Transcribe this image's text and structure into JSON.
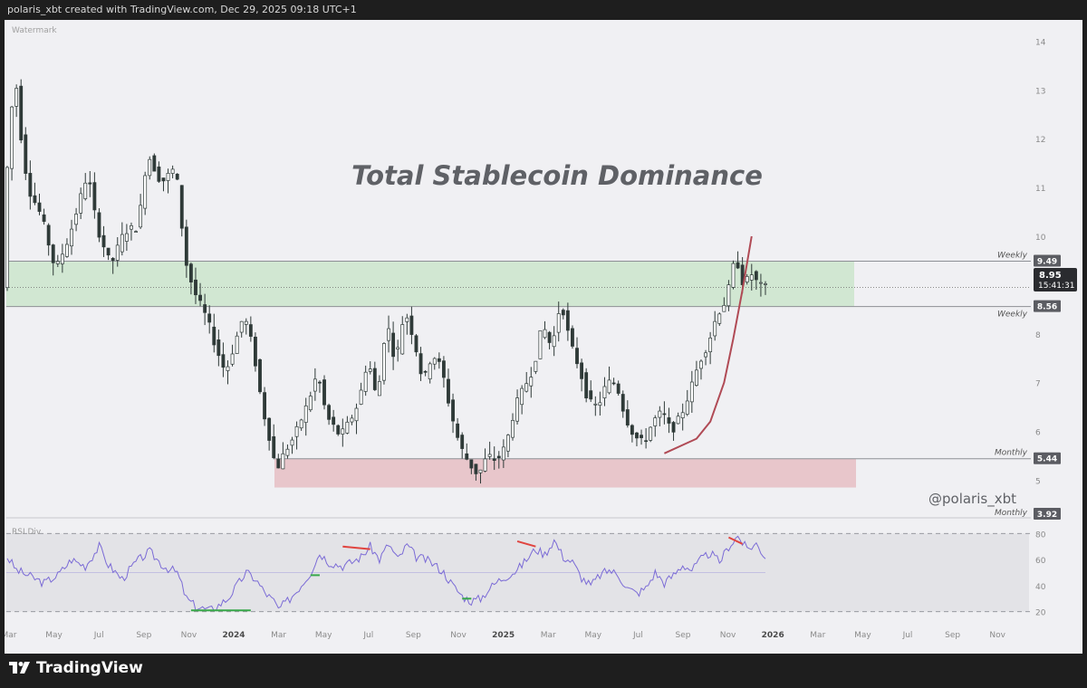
{
  "header": {
    "attribution": "polaris_xbt created with TradingView.com, Dec 29, 2025 09:18 UTC+1"
  },
  "footer": {
    "brand": "TradingView"
  },
  "colors": {
    "background": "#f0f0f3",
    "candle": "#2f3a38",
    "supply_zone": "#cde6ce",
    "demand_zone": "#e7c3c8",
    "curve": "#b04a55",
    "rsi_line": "#7b6bd6",
    "divergence_bear": "#e0443f",
    "divergence_bull": "#38a84a"
  },
  "chart_data": [
    {
      "type": "candlestick",
      "title": "Total Stablecoin Dominance",
      "watermark": "Watermark",
      "signature": "@polaris_xbt",
      "ylim": [
        4.6,
        14.25
      ],
      "y_ticks": [
        5,
        6,
        7,
        8,
        9,
        10,
        11,
        12,
        13,
        14
      ],
      "x_ticks": [
        "Mar",
        "May",
        "Jul",
        "Sep",
        "Nov",
        "2024",
        "Mar",
        "May",
        "Jul",
        "Sep",
        "Nov",
        "2025",
        "Mar",
        "May",
        "Jul",
        "Sep",
        "Nov",
        "2026",
        "Mar",
        "May",
        "Jul",
        "Sep",
        "Nov"
      ],
      "x_tick_bold": [
        "2024",
        "2025",
        "2026"
      ],
      "price_path": [
        [
          0,
          11.2
        ],
        [
          1,
          11.6
        ],
        [
          2,
          13.7
        ],
        [
          3,
          12.4
        ],
        [
          5,
          11.0
        ],
        [
          8,
          10.4
        ],
        [
          11,
          9.3
        ],
        [
          14,
          10.0
        ],
        [
          18,
          11.3
        ],
        [
          20,
          10.2
        ],
        [
          23,
          9.4
        ],
        [
          26,
          10.1
        ],
        [
          29,
          10.2
        ],
        [
          31,
          11.7
        ],
        [
          34,
          11.1
        ],
        [
          37,
          11.4
        ],
        [
          38,
          10.8
        ],
        [
          39,
          9.6
        ],
        [
          41,
          8.9
        ],
        [
          44,
          8.3
        ],
        [
          46,
          7.7
        ],
        [
          48,
          7.2
        ],
        [
          50,
          7.8
        ],
        [
          52,
          8.4
        ],
        [
          54,
          7.7
        ],
        [
          56,
          6.5
        ],
        [
          58,
          5.7
        ],
        [
          59,
          5.2
        ],
        [
          61,
          5.6
        ],
        [
          63,
          5.9
        ],
        [
          66,
          6.6
        ],
        [
          68,
          7.2
        ],
        [
          70,
          6.3
        ],
        [
          73,
          5.9
        ],
        [
          75,
          6.2
        ],
        [
          77,
          6.6
        ],
        [
          79,
          7.5
        ],
        [
          81,
          6.6
        ],
        [
          83,
          8.3
        ],
        [
          85,
          7.4
        ],
        [
          87,
          8.5
        ],
        [
          89,
          7.9
        ],
        [
          91,
          7.0
        ],
        [
          93,
          7.6
        ],
        [
          95,
          7.3
        ],
        [
          97,
          6.4
        ],
        [
          99,
          5.7
        ],
        [
          101,
          5.35
        ],
        [
          103,
          5.1
        ],
        [
          105,
          5.5
        ],
        [
          107,
          5.4
        ],
        [
          109,
          5.7
        ],
        [
          111,
          6.5
        ],
        [
          113,
          6.9
        ],
        [
          115,
          7.3
        ],
        [
          117,
          8.2
        ],
        [
          119,
          7.7
        ],
        [
          121,
          8.7
        ],
        [
          123,
          7.8
        ],
        [
          125,
          7.3
        ],
        [
          127,
          6.6
        ],
        [
          129,
          6.5
        ],
        [
          131,
          7.0
        ],
        [
          133,
          7.0
        ],
        [
          135,
          6.3
        ],
        [
          137,
          5.9
        ],
        [
          139,
          5.75
        ],
        [
          141,
          6.2
        ],
        [
          143,
          6.4
        ],
        [
          145,
          6.0
        ],
        [
          147,
          6.3
        ],
        [
          149,
          6.8
        ],
        [
          151,
          7.4
        ],
        [
          153,
          7.8
        ],
        [
          155,
          8.4
        ],
        [
          157,
          8.7
        ],
        [
          159,
          9.6
        ],
        [
          161,
          8.9
        ],
        [
          162,
          9.3
        ],
        [
          164,
          9.0
        ],
        [
          165,
          8.95
        ]
      ],
      "levels": [
        {
          "label": "Weekly",
          "value": "9.49"
        },
        {
          "label": "Weekly",
          "value": "8.56"
        },
        {
          "label": "Monthly",
          "value": "5.44"
        },
        {
          "label": "Monthly",
          "value": "3.92"
        }
      ],
      "zones": [
        {
          "name": "supply",
          "from": 8.56,
          "to": 9.49
        },
        {
          "name": "demand",
          "from": 4.85,
          "to": 5.44
        }
      ],
      "current": {
        "price": "8.95",
        "countdown": "15:41:31"
      },
      "parabolic_curve": [
        [
          143,
          5.55
        ],
        [
          150,
          5.85
        ],
        [
          153,
          6.2
        ],
        [
          156,
          7.0
        ],
        [
          158,
          7.9
        ],
        [
          160,
          8.9
        ],
        [
          162,
          10.0
        ]
      ]
    },
    {
      "type": "line",
      "label": "RSI Div",
      "ylim": [
        17,
        83
      ],
      "y_ticks": [
        20,
        40,
        60,
        80
      ],
      "band": [
        20,
        80
      ],
      "midline": 50,
      "path": [
        [
          0,
          62
        ],
        [
          2,
          52
        ],
        [
          5,
          47
        ],
        [
          8,
          42
        ],
        [
          11,
          48
        ],
        [
          14,
          60
        ],
        [
          17,
          55
        ],
        [
          20,
          70
        ],
        [
          22,
          56
        ],
        [
          25,
          45
        ],
        [
          28,
          58
        ],
        [
          31,
          66
        ],
        [
          34,
          55
        ],
        [
          37,
          50
        ],
        [
          39,
          30
        ],
        [
          41,
          24
        ],
        [
          44,
          21
        ],
        [
          46,
          25
        ],
        [
          48,
          30
        ],
        [
          50,
          40
        ],
        [
          52,
          50
        ],
        [
          54,
          45
        ],
        [
          56,
          35
        ],
        [
          58,
          28
        ],
        [
          59,
          22
        ],
        [
          61,
          28
        ],
        [
          63,
          36
        ],
        [
          66,
          50
        ],
        [
          68,
          65
        ],
        [
          70,
          58
        ],
        [
          73,
          55
        ],
        [
          75,
          58
        ],
        [
          77,
          62
        ],
        [
          79,
          70
        ],
        [
          81,
          60
        ],
        [
          83,
          72
        ],
        [
          85,
          60
        ],
        [
          87,
          71
        ],
        [
          89,
          62
        ],
        [
          91,
          60
        ],
        [
          93,
          56
        ],
        [
          95,
          50
        ],
        [
          97,
          40
        ],
        [
          99,
          32
        ],
        [
          101,
          28
        ],
        [
          103,
          30
        ],
        [
          105,
          38
        ],
        [
          107,
          44
        ],
        [
          109,
          48
        ],
        [
          111,
          52
        ],
        [
          113,
          60
        ],
        [
          115,
          68
        ],
        [
          117,
          64
        ],
        [
          119,
          75
        ],
        [
          121,
          62
        ],
        [
          123,
          58
        ],
        [
          125,
          46
        ],
        [
          127,
          40
        ],
        [
          129,
          48
        ],
        [
          131,
          52
        ],
        [
          133,
          48
        ],
        [
          135,
          38
        ],
        [
          137,
          34
        ],
        [
          139,
          38
        ],
        [
          141,
          50
        ],
        [
          143,
          42
        ],
        [
          145,
          48
        ],
        [
          147,
          56
        ],
        [
          149,
          52
        ],
        [
          151,
          60
        ],
        [
          153,
          65
        ],
        [
          155,
          58
        ],
        [
          157,
          70
        ],
        [
          159,
          78
        ],
        [
          161,
          68
        ],
        [
          163,
          72
        ],
        [
          165,
          62
        ]
      ],
      "divergences": [
        {
          "kind": "bull",
          "points": [
            [
              40,
              21
            ],
            [
              53,
              21
            ]
          ]
        },
        {
          "kind": "bull",
          "points": [
            [
              66,
              48
            ],
            [
              68,
              48
            ]
          ]
        },
        {
          "kind": "bull",
          "points": [
            [
              99,
              30
            ],
            [
              101,
              30
            ]
          ]
        },
        {
          "kind": "bear",
          "points": [
            [
              73,
              70
            ],
            [
              79,
              68
            ]
          ]
        },
        {
          "kind": "bear",
          "points": [
            [
              111,
              74
            ],
            [
              115,
              70
            ]
          ]
        },
        {
          "kind": "bear",
          "points": [
            [
              157,
              77
            ],
            [
              160,
              72
            ]
          ]
        }
      ]
    }
  ]
}
